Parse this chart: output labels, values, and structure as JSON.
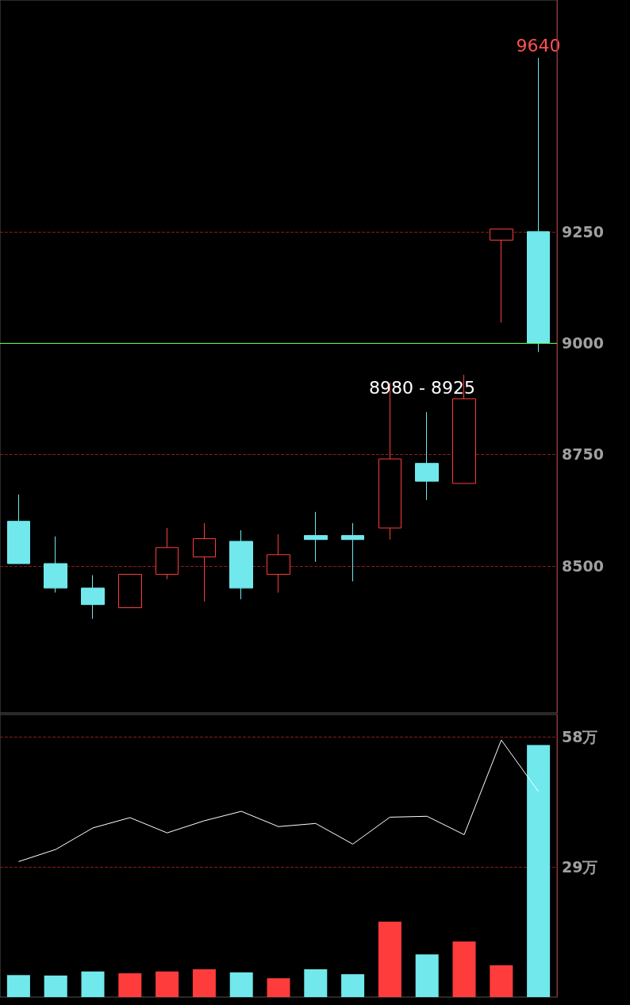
{
  "chart_data": [
    {
      "type": "candlestick",
      "categories": [
        null,
        null,
        null,
        null,
        null,
        null,
        null,
        null,
        null,
        null,
        null,
        null,
        null,
        null,
        null
      ],
      "ohlc": [
        [
          8600,
          8660,
          8505,
          8505
        ],
        [
          8505,
          8566,
          8440,
          8450
        ],
        [
          8450,
          8479,
          8381,
          8413
        ],
        [
          8406,
          8481,
          8406,
          8481
        ],
        [
          8481,
          8585,
          8470,
          8541
        ],
        [
          8520,
          8596,
          8420,
          8561
        ],
        [
          8555,
          8580,
          8425,
          8450
        ],
        [
          8481,
          8571,
          8440,
          8525
        ],
        [
          8568,
          8621,
          8509,
          8559
        ],
        [
          8568,
          8596,
          8465,
          8559
        ],
        [
          8585,
          8911,
          8559,
          8740
        ],
        [
          8730,
          8845,
          8648,
          8690
        ],
        [
          8685,
          8929,
          8685,
          8875
        ],
        [
          9231,
          9256,
          9046,
          9256
        ],
        [
          9250,
          9640,
          8980,
          9000
        ]
      ],
      "colors": [
        "#70e8ec",
        "#70e8ec",
        "#70e8ec",
        "#ff3c3c",
        "#ff3c3c",
        "#ff3c3c",
        "#70e8ec",
        "#ff3c3c",
        "#70e8ec",
        "#70e8ec",
        "#ff3c3c",
        "#70e8ec",
        "#ff3c3c",
        "#ff3c3c",
        "#70e8ec"
      ],
      "ylim": [
        8170,
        9770
      ],
      "yticks": [
        8500,
        8750,
        9000,
        9250
      ],
      "grid": "y",
      "ref_lines": [
        {
          "axis": "y",
          "value": 9000,
          "color": "#66ff66"
        }
      ],
      "annotations": [
        {
          "text": "9640",
          "y": 9640
        },
        "8980 - 8925"
      ]
    },
    {
      "type": "bar",
      "categories": [
        null,
        null,
        null,
        null,
        null,
        null,
        null,
        null,
        null,
        null,
        null,
        null,
        null,
        null,
        null
      ],
      "ylim": [
        0,
        63
      ],
      "yticks": [
        {
          "value": 29,
          "label": "29万"
        },
        {
          "value": 58,
          "label": "58万"
        }
      ],
      "grid": "y",
      "series": [
        {
          "type": "bar",
          "colors": [
            "#70e8ec",
            "#70e8ec",
            "#70e8ec",
            "#ff3c3c",
            "#ff3c3c",
            "#ff3c3c",
            "#70e8ec",
            "#ff3c3c",
            "#70e8ec",
            "#70e8ec",
            "#ff3c3c",
            "#70e8ec",
            "#ff3c3c",
            "#ff3c3c",
            "#70e8ec"
          ],
          "values": [
            4.9,
            4.8,
            5.7,
            5.3,
            5.7,
            6.2,
            5.5,
            4.2,
            6.2,
            5.1,
            16.8,
            9.5,
            12.4,
            7.1,
            56.2
          ]
        },
        {
          "type": "line",
          "color": "#ffffff",
          "marker": "none",
          "values": [
            30.2,
            32.9,
            37.7,
            40.0,
            36.6,
            39.3,
            41.4,
            38.0,
            38.7,
            34.1,
            40.1,
            40.3,
            36.2,
            57.3,
            45.8
          ]
        }
      ]
    }
  ]
}
